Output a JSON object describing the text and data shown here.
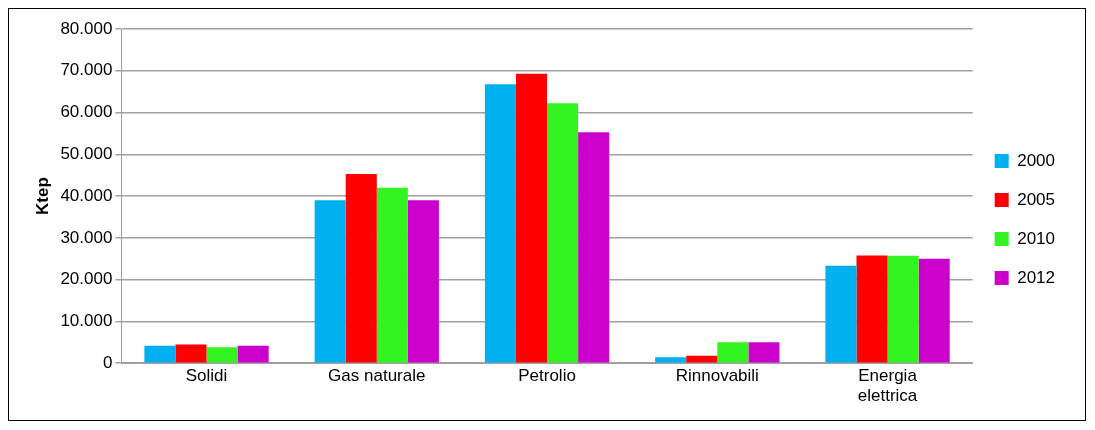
{
  "chart_data": {
    "type": "bar",
    "ylabel": "Ktep",
    "categories": [
      "Solidi",
      "Gas naturale",
      "Petrolio",
      "Rinnovabili",
      "Energia elettrica"
    ],
    "series": [
      {
        "name": "2000",
        "color": "#00b0f0",
        "values": [
          4200,
          39000,
          66800,
          1400,
          23300
        ]
      },
      {
        "name": "2005",
        "color": "#ff0000",
        "values": [
          4500,
          45300,
          69300,
          1800,
          25800
        ]
      },
      {
        "name": "2010",
        "color": "#33f321",
        "values": [
          3800,
          42000,
          62200,
          5000,
          25700
        ]
      },
      {
        "name": "2012",
        "color": "#cc00cc",
        "values": [
          4200,
          39000,
          55300,
          5000,
          25000
        ]
      }
    ],
    "ylim": [
      0,
      80000
    ],
    "yticks": [
      {
        "value": 0,
        "label": "0"
      },
      {
        "value": 10000,
        "label": "10.000"
      },
      {
        "value": 20000,
        "label": "20.000"
      },
      {
        "value": 30000,
        "label": "30.000"
      },
      {
        "value": 40000,
        "label": "40.000"
      },
      {
        "value": 50000,
        "label": "50.000"
      },
      {
        "value": 60000,
        "label": "60.000"
      },
      {
        "value": 70000,
        "label": "70.000"
      },
      {
        "value": 80000,
        "label": "80.000"
      }
    ],
    "grid": "y",
    "legend": "right"
  }
}
